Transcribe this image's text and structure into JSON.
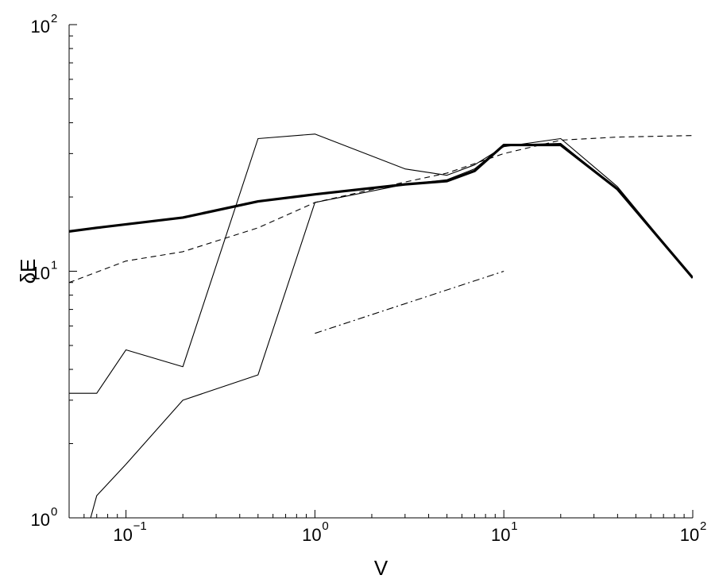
{
  "chart_data": {
    "type": "line",
    "title": "",
    "xlabel": "V",
    "ylabel": "δE",
    "xscale": "log",
    "yscale": "log",
    "xlim": [
      0.05,
      100
    ],
    "ylim": [
      1,
      100
    ],
    "grid": false,
    "x_ticks": [
      {
        "value": 0.1,
        "base": "10",
        "exp": "−1"
      },
      {
        "value": 1,
        "base": "10",
        "exp": "0"
      },
      {
        "value": 10,
        "base": "10",
        "exp": "1"
      },
      {
        "value": 100,
        "base": "10",
        "exp": "2"
      }
    ],
    "y_ticks": [
      {
        "value": 1,
        "base": "10",
        "exp": "0"
      },
      {
        "value": 10,
        "base": "10",
        "exp": "1"
      },
      {
        "value": 100,
        "base": "10",
        "exp": "2"
      }
    ],
    "series": [
      {
        "style": "thick-solid",
        "color": "#000000",
        "points": [
          [
            0.05,
            14.5
          ],
          [
            0.07,
            15.0
          ],
          [
            0.2,
            16.5
          ],
          [
            0.5,
            19.2
          ],
          [
            1,
            20.5
          ],
          [
            3,
            22.5
          ],
          [
            5,
            23.2
          ],
          [
            7,
            25.5
          ],
          [
            10,
            32.5
          ],
          [
            20,
            32.5
          ],
          [
            40,
            21.5
          ],
          [
            100,
            9.4
          ]
        ]
      },
      {
        "style": "thin-solid",
        "color": "#000000",
        "points": [
          [
            0.05,
            3.2
          ],
          [
            0.07,
            3.2
          ],
          [
            0.1,
            4.8
          ],
          [
            0.2,
            4.1
          ],
          [
            0.5,
            34.5
          ],
          [
            1,
            36.0
          ],
          [
            3,
            26.0
          ],
          [
            5,
            24.5
          ],
          [
            7,
            27.0
          ],
          [
            10,
            32.0
          ],
          [
            20,
            34.5
          ],
          [
            40,
            22.0
          ],
          [
            100,
            9.4
          ]
        ]
      },
      {
        "style": "thin-solid",
        "color": "#000000",
        "points": [
          [
            0.065,
            1.0
          ],
          [
            0.07,
            1.23
          ],
          [
            0.1,
            1.65
          ],
          [
            0.2,
            3.0
          ],
          [
            0.5,
            3.8
          ],
          [
            1,
            19.0
          ],
          [
            3,
            22.5
          ],
          [
            5,
            23.5
          ],
          [
            7,
            26.0
          ],
          [
            10,
            32.5
          ],
          [
            20,
            33.0
          ],
          [
            40,
            21.5
          ],
          [
            100,
            9.4
          ]
        ]
      },
      {
        "style": "dashed",
        "color": "#000000",
        "points": [
          [
            0.05,
            9.0
          ],
          [
            0.1,
            11.0
          ],
          [
            0.2,
            12.0
          ],
          [
            0.5,
            15.0
          ],
          [
            1,
            19.0
          ],
          [
            3,
            23.0
          ],
          [
            5,
            25.0
          ],
          [
            10,
            30.0
          ],
          [
            20,
            34.0
          ],
          [
            40,
            35.0
          ],
          [
            100,
            35.5
          ]
        ]
      },
      {
        "style": "dash-dot",
        "color": "#000000",
        "points": [
          [
            1,
            5.6
          ],
          [
            10,
            10.0
          ]
        ]
      }
    ]
  }
}
